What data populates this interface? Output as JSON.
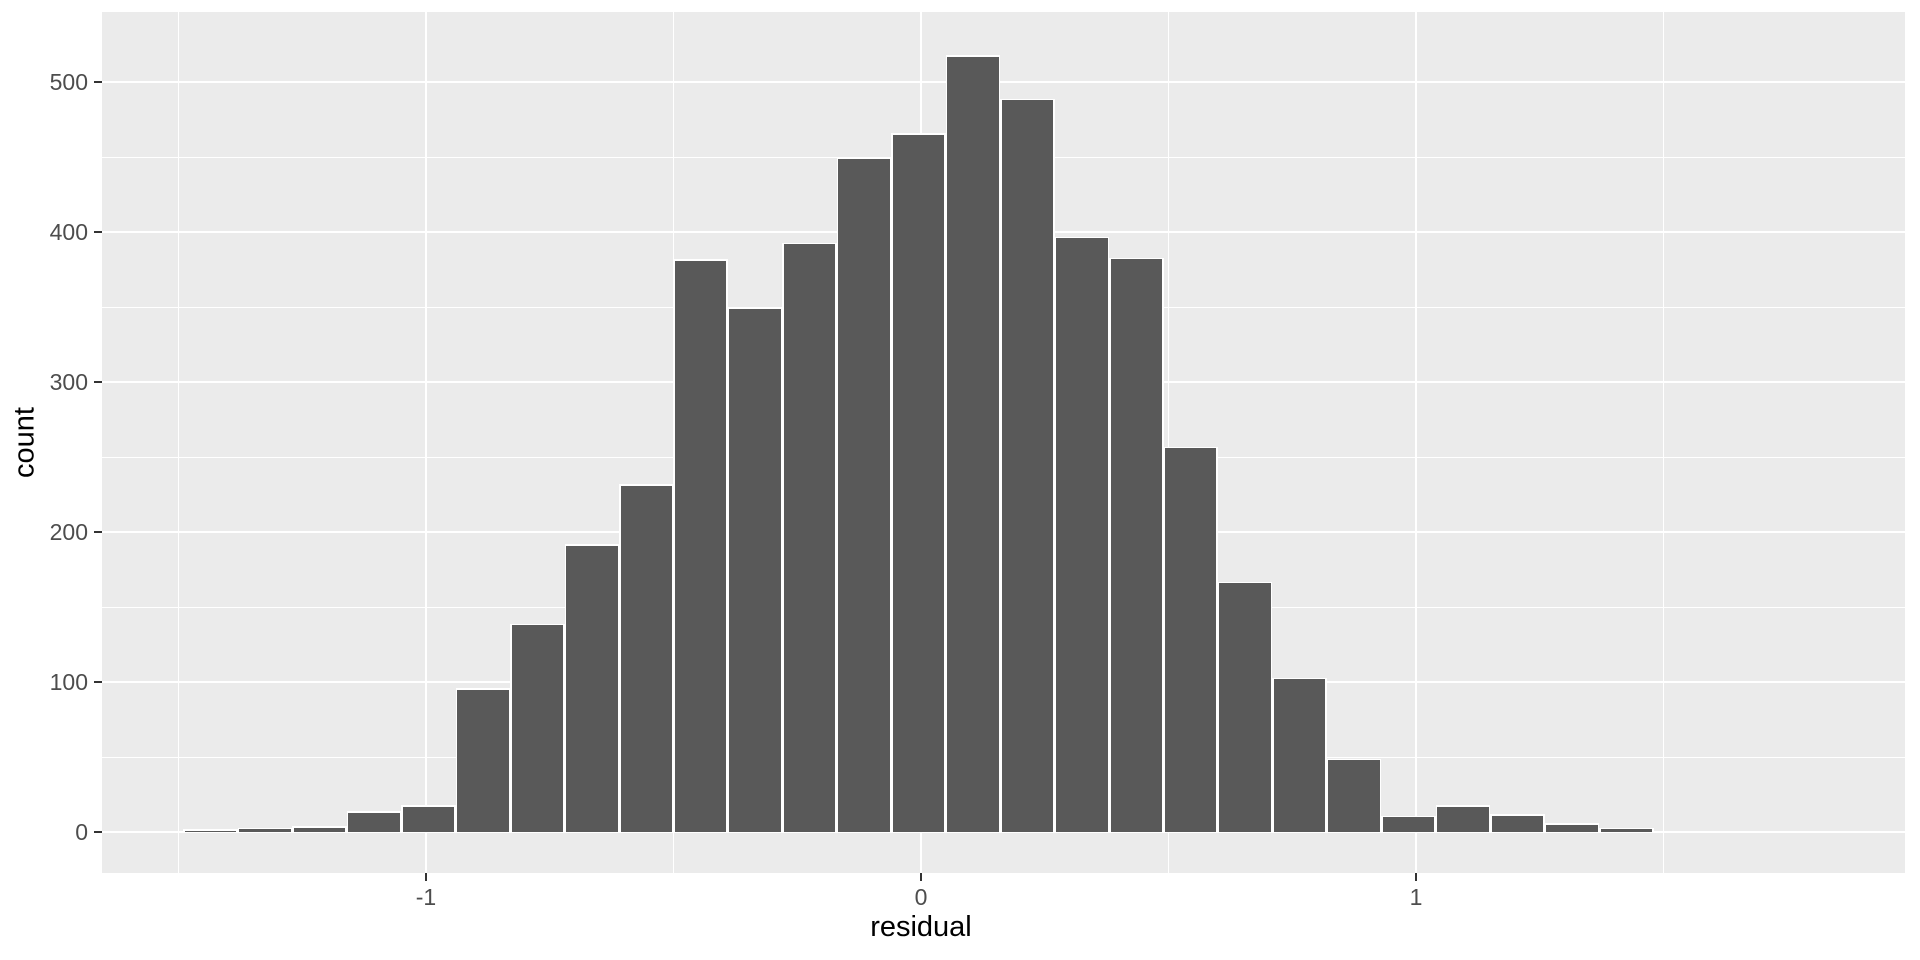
{
  "chart_data": {
    "type": "bar",
    "subtype": "histogram",
    "title": "",
    "xlabel": "residual",
    "ylabel": "count",
    "legend": "none",
    "grid": "on",
    "bins": {
      "start": -1.49,
      "width": 0.11
    },
    "bin_centers": [
      -1.435,
      -1.325,
      -1.215,
      -1.105,
      -0.995,
      -0.885,
      -0.775,
      -0.665,
      -0.555,
      -0.445,
      -0.335,
      -0.225,
      -0.115,
      -0.005,
      0.105,
      0.215,
      0.325,
      0.435,
      0.545,
      0.655,
      0.765,
      0.875,
      0.985,
      1.095,
      1.205,
      1.315,
      1.425
    ],
    "counts": [
      1,
      2,
      3,
      13,
      17,
      95,
      138,
      191,
      231,
      381,
      349,
      392,
      449,
      465,
      517,
      488,
      396,
      382,
      256,
      166,
      102,
      48,
      10,
      17,
      11,
      5,
      2
    ],
    "x_axis": {
      "ticks": [
        -1,
        0,
        1
      ],
      "tick_labels": [
        "-1",
        "0",
        "1"
      ],
      "minor_ticks": [
        -1.5,
        -0.5,
        0.5,
        1.5
      ],
      "domain": [
        -1.6545,
        1.9879
      ]
    },
    "y_axis": {
      "ticks": [
        0,
        100,
        200,
        300,
        400,
        500
      ],
      "tick_labels": [
        "0",
        "100",
        "200",
        "300",
        "400",
        "500"
      ],
      "minor_ticks": [
        50,
        150,
        250,
        350,
        450
      ],
      "domain": [
        -27.33,
        546.67
      ]
    },
    "colors": {
      "bar_fill": "#595959",
      "bar_stroke": "#FFFFFF",
      "panel_background": "#EBEBEB",
      "grid_major": "#FFFFFF",
      "grid_minor": "#FFFFFF",
      "tick_mark": "#333333",
      "tick_label": "#4D4D4D",
      "axis_title": "#000000",
      "figure_background": "#FFFFFF"
    }
  }
}
